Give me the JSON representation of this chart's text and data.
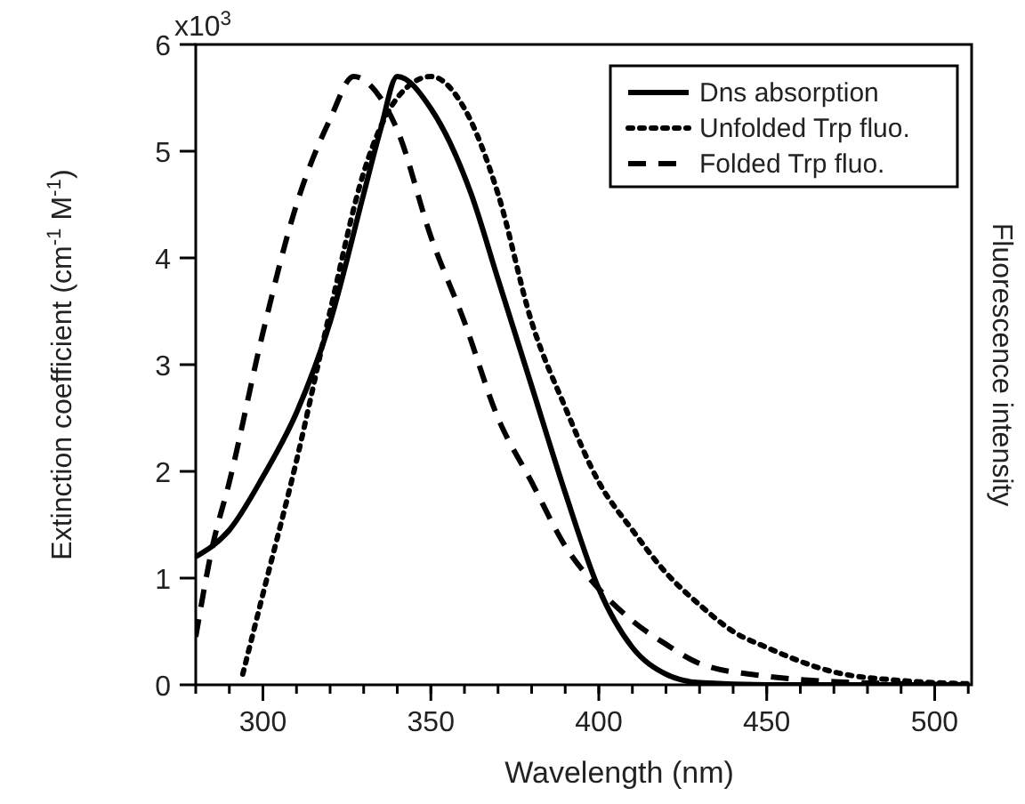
{
  "chart_data": {
    "type": "line",
    "xlabel": "Wavelength (nm)",
    "ylabel": "Extinction coefficient (cm$^{-1}$ M$^{-1}$)",
    "y2label": "Fluorescence intensity",
    "xlim": [
      280,
      511
    ],
    "xticks": [
      300,
      350,
      400,
      450,
      500
    ],
    "ylim": [
      0,
      6
    ],
    "yticks": [
      0,
      1,
      2,
      3,
      4,
      5,
      6
    ],
    "annotations": [
      "x10$^{3}$"
    ],
    "grid": false,
    "legend": "top right",
    "series": [
      {
        "name": "Dns absorption",
        "color": "#000000",
        "line_style": "solid",
        "x": [
          280,
          290,
          300,
          310,
          320,
          330,
          335,
          340,
          350,
          362,
          370,
          380,
          390,
          400,
          410,
          420,
          430,
          450,
          480,
          510
        ],
        "values": [
          1.2,
          1.45,
          1.95,
          2.55,
          3.4,
          4.6,
          5.2,
          5.7,
          5.4,
          4.6,
          3.8,
          2.8,
          1.8,
          0.9,
          0.35,
          0.1,
          0.02,
          0,
          0,
          0
        ]
      },
      {
        "name": "Unfolded Trp fluo.",
        "color": "#000000",
        "line_style": "dotted",
        "x": [
          294,
          300,
          310,
          320,
          330,
          340,
          350,
          360,
          370,
          380,
          390,
          400,
          410,
          420,
          430,
          440,
          450,
          470,
          490,
          510
        ],
        "values": [
          0.1,
          0.85,
          2.1,
          3.5,
          4.8,
          5.5,
          5.7,
          5.4,
          4.6,
          3.4,
          2.6,
          1.9,
          1.45,
          1.05,
          0.75,
          0.5,
          0.35,
          0.12,
          0.04,
          0.01
        ]
      },
      {
        "name": "Folded Trp fluo.",
        "color": "#000000",
        "line_style": "dashed",
        "x": [
          280,
          285,
          290,
          300,
          310,
          320,
          327,
          335,
          340,
          350,
          360,
          370,
          380,
          390,
          400,
          410,
          420,
          430,
          450,
          470,
          490,
          510
        ],
        "values": [
          0.45,
          1.3,
          1.9,
          3.3,
          4.5,
          5.3,
          5.7,
          5.5,
          5.2,
          4.2,
          3.4,
          2.5,
          1.9,
          1.3,
          0.9,
          0.6,
          0.38,
          0.2,
          0.08,
          0.03,
          0.01,
          0
        ]
      }
    ]
  }
}
